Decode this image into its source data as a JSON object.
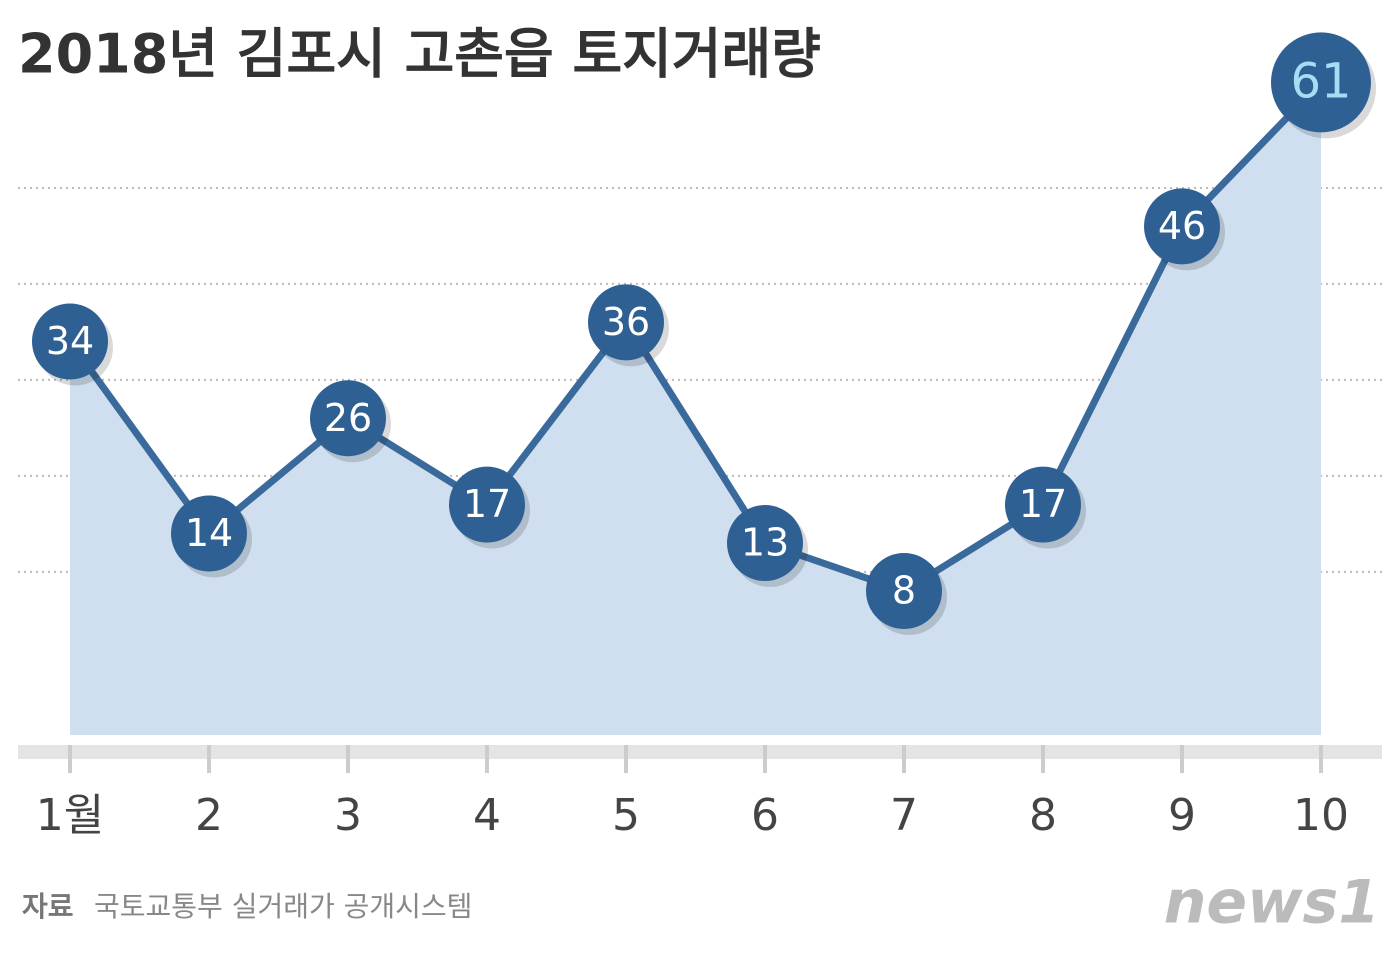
{
  "chart_data": {
    "type": "area-line",
    "title": "2018년 김포시 고촌읍 토지거래량",
    "categories": [
      "1월",
      "2",
      "3",
      "4",
      "5",
      "6",
      "7",
      "8",
      "9",
      "10"
    ],
    "values": [
      34,
      14,
      26,
      17,
      36,
      13,
      8,
      17,
      46,
      61
    ],
    "color": "#3a6a9c",
    "area_color": "#cfdfef",
    "ylim": [
      -7,
      65
    ],
    "yticks": [
      10,
      20,
      30,
      40,
      50
    ],
    "grid": true,
    "tick_labels": false,
    "source": {
      "label": "자료",
      "text": "국토교통부 실거래가 공개시스템"
    },
    "logo": "news1"
  }
}
